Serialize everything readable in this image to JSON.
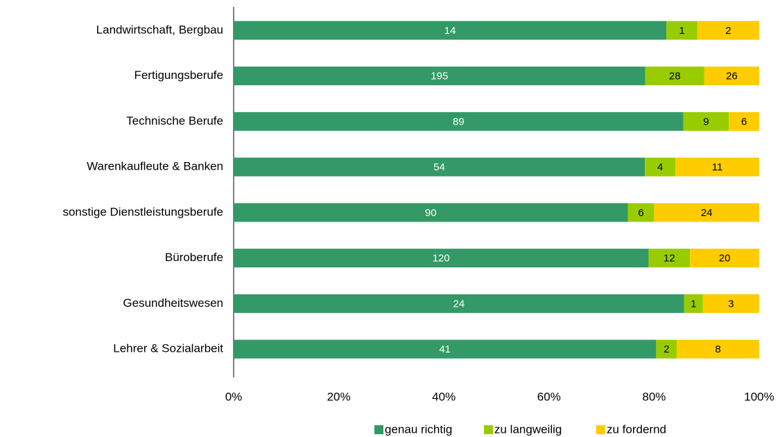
{
  "chart_data": {
    "type": "bar",
    "orientation": "horizontal",
    "stacking": "percent",
    "categories": [
      "Landwirtschaft, Bergbau",
      "Fertigungsberufe",
      "Technische Berufe",
      "Warenkaufleute & Banken",
      "sonstige Dienstleistungsberufe",
      "Büroberufe",
      "Gesundheitswesen",
      "Lehrer & Sozialarbeit"
    ],
    "series": [
      {
        "name": "genau richtig",
        "color": "#339966",
        "label_color": "#ffffff",
        "values": [
          14,
          195,
          89,
          54,
          90,
          120,
          24,
          41
        ]
      },
      {
        "name": "zu langweilig",
        "color": "#99cc00",
        "label_color": "#000000",
        "values": [
          1,
          28,
          9,
          4,
          6,
          12,
          1,
          2
        ]
      },
      {
        "name": "zu fordernd",
        "color": "#ffcc00",
        "label_color": "#000000",
        "values": [
          2,
          26,
          6,
          11,
          24,
          20,
          3,
          8
        ]
      }
    ],
    "xlim": [
      0,
      100
    ],
    "xticks": [
      {
        "value": 0,
        "label": "0%"
      },
      {
        "value": 20,
        "label": "20%"
      },
      {
        "value": 40,
        "label": "40%"
      },
      {
        "value": 60,
        "label": "60%"
      },
      {
        "value": 80,
        "label": "80%"
      },
      {
        "value": 100,
        "label": "100%"
      }
    ],
    "legend": "bottom"
  }
}
